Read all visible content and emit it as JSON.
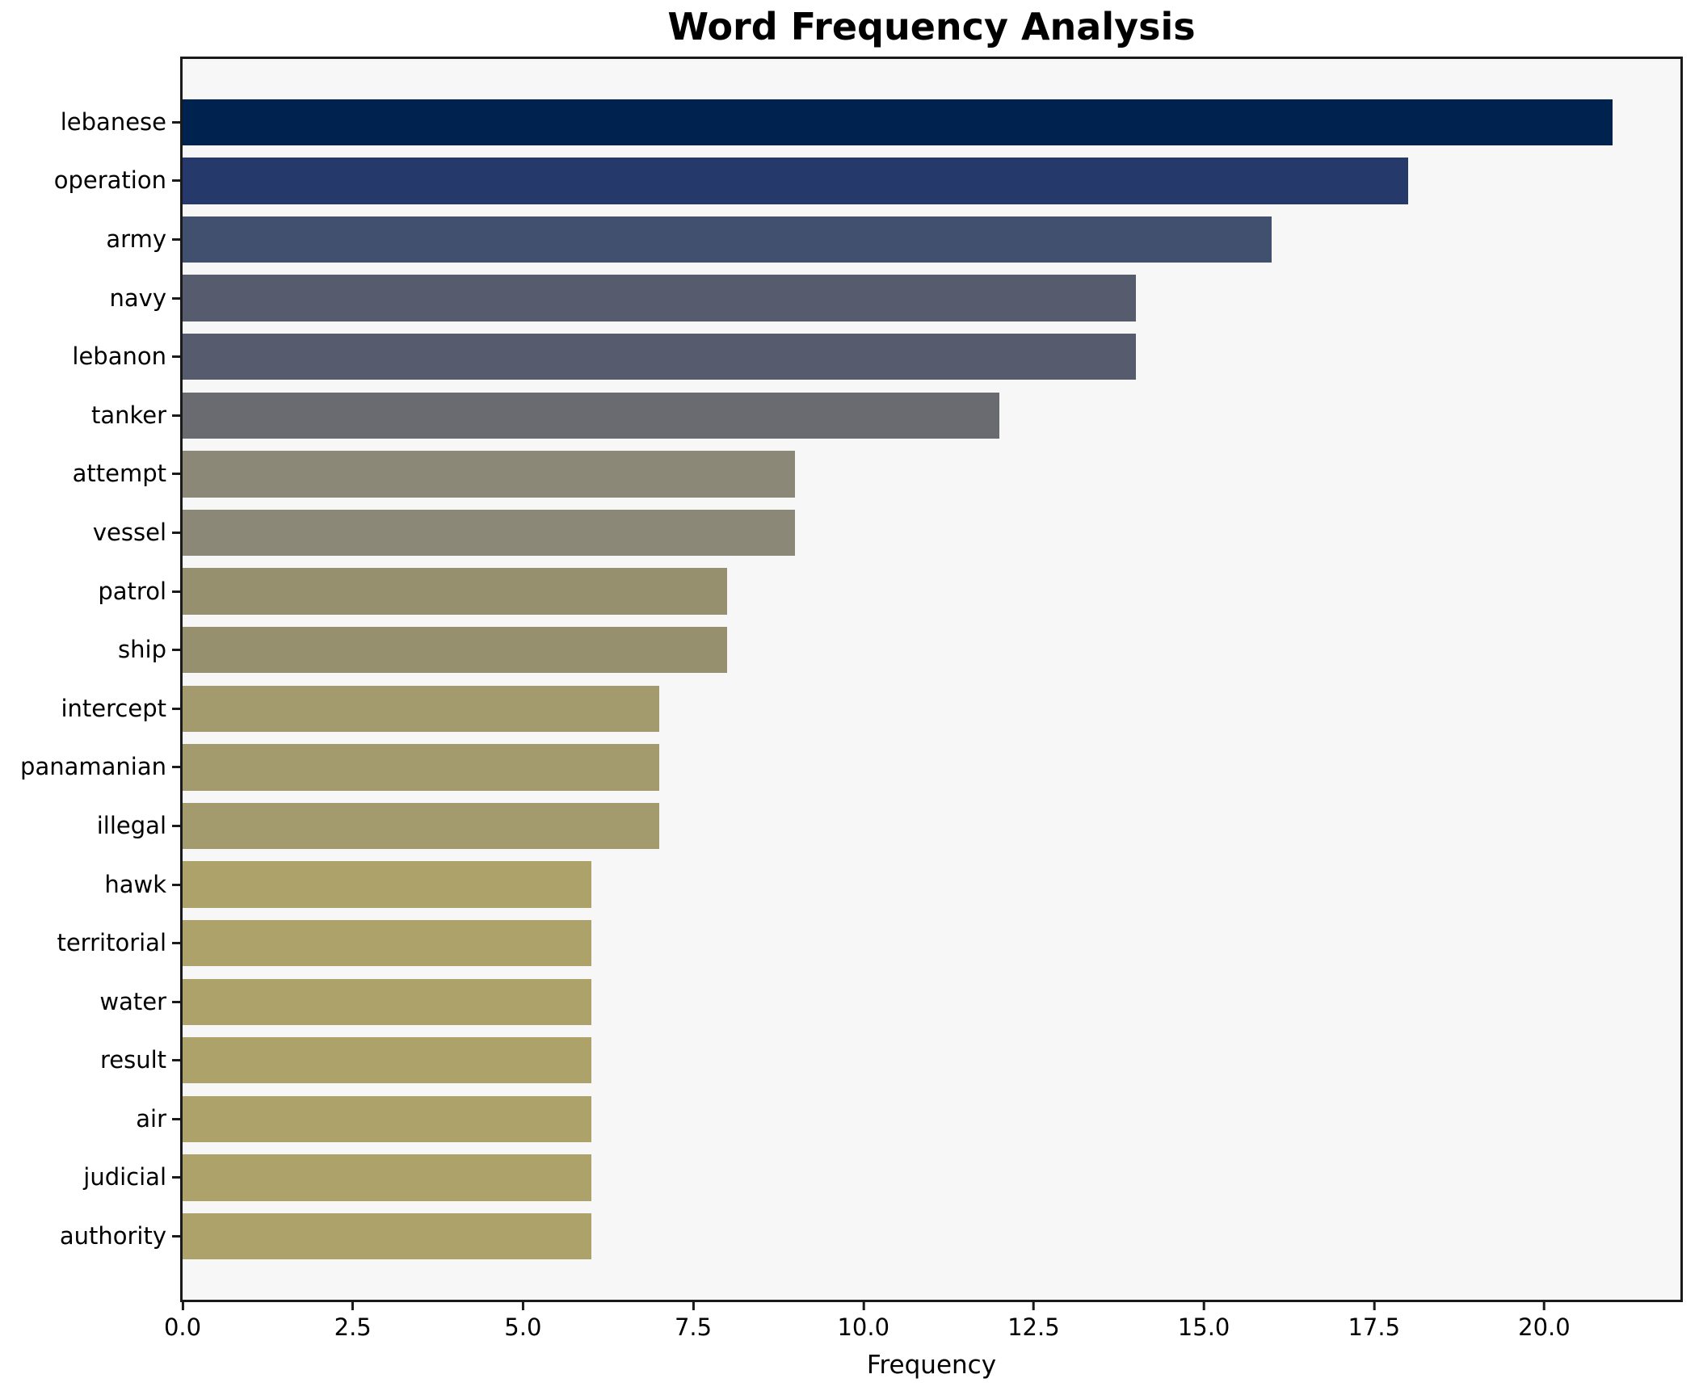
{
  "chart_data": {
    "type": "bar",
    "orientation": "horizontal",
    "title": "Word Frequency Analysis",
    "xlabel": "Frequency",
    "ylabel": "",
    "categories": [
      "lebanese",
      "operation",
      "army",
      "navy",
      "lebanon",
      "tanker",
      "attempt",
      "vessel",
      "patrol",
      "ship",
      "intercept",
      "panamanian",
      "illegal",
      "hawk",
      "territorial",
      "water",
      "result",
      "air",
      "judicial",
      "authority"
    ],
    "values": [
      21,
      18,
      16,
      14,
      14,
      12,
      9,
      9,
      8,
      8,
      7,
      7,
      7,
      6,
      6,
      6,
      6,
      6,
      6,
      6
    ],
    "bar_colors": [
      "#00224e",
      "#253a6b",
      "#42506f",
      "#565c6d",
      "#565c6d",
      "#6a6a71",
      "#8c8877",
      "#8c8877",
      "#97906e",
      "#97906e",
      "#a39a6e",
      "#a39a6e",
      "#a39a6e",
      "#aea26b",
      "#aea26b",
      "#aea26b",
      "#aea26b",
      "#aea26b",
      "#aea26b",
      "#aea26b"
    ],
    "xlim": [
      0,
      22
    ],
    "xticks": [
      0,
      2.5,
      5,
      7.5,
      10,
      12.5,
      15,
      17.5,
      20
    ],
    "xtick_labels": [
      "0.0",
      "2.5",
      "5.0",
      "7.5",
      "10.0",
      "12.5",
      "15.0",
      "17.5",
      "20.0"
    ],
    "grid": false,
    "legend": null,
    "plot_bg": "#f7f7f7",
    "fig_bg": "#ffffff",
    "spine_color": "#1a1a1a",
    "text_color": "#000000"
  }
}
